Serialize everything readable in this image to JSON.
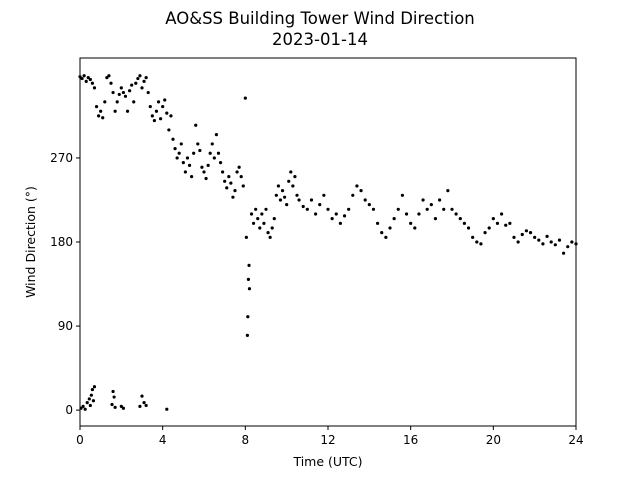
{
  "chart_data": {
    "type": "scatter",
    "title": "AO&SS Building Tower Wind Direction",
    "subtitle": "2023-01-14",
    "x_label": "Time (UTC)",
    "y_label": "Wind Direction (°)",
    "color": "#000000",
    "xlim": [
      0,
      24
    ],
    "xticks": [
      0,
      4,
      8,
      12,
      16,
      20,
      24
    ],
    "ylim": [
      -17,
      377
    ],
    "yticks": [
      0,
      90,
      180,
      270
    ],
    "x": [
      0.0,
      0.1,
      0.2,
      0.3,
      0.4,
      0.5,
      0.6,
      0.7,
      0.8,
      0.9,
      1.0,
      1.1,
      1.2,
      1.3,
      1.4,
      1.5,
      1.6,
      1.7,
      1.8,
      1.9,
      2.0,
      2.1,
      2.2,
      2.3,
      2.4,
      2.5,
      2.6,
      2.7,
      2.8,
      2.9,
      3.0,
      3.1,
      3.2,
      3.3,
      3.4,
      3.5,
      3.6,
      3.7,
      3.8,
      3.9,
      4.0,
      4.1,
      4.2,
      4.3,
      4.4,
      4.5,
      4.6,
      4.7,
      4.8,
      4.9,
      5.0,
      5.1,
      5.2,
      5.3,
      5.4,
      5.5,
      5.6,
      5.7,
      5.8,
      5.9,
      6.0,
      6.1,
      6.2,
      6.3,
      6.4,
      6.5,
      6.6,
      6.7,
      6.8,
      6.9,
      7.0,
      7.1,
      7.2,
      7.3,
      7.4,
      7.5,
      7.6,
      7.7,
      7.8,
      7.9,
      8.0,
      8.05,
      8.1,
      8.12,
      8.15,
      8.18,
      8.2,
      8.3,
      8.4,
      8.5,
      8.6,
      8.7,
      8.8,
      8.9,
      9.0,
      9.1,
      9.2,
      9.3,
      9.4,
      9.5,
      9.6,
      9.7,
      9.8,
      9.9,
      10.0,
      10.1,
      10.2,
      10.3,
      10.4,
      10.5,
      10.6,
      10.8,
      11.0,
      11.2,
      11.4,
      11.6,
      11.8,
      12.0,
      12.2,
      12.4,
      12.6,
      12.8,
      13.0,
      13.2,
      13.4,
      13.6,
      13.8,
      14.0,
      14.2,
      14.4,
      14.6,
      14.8,
      15.0,
      15.2,
      15.4,
      15.6,
      15.8,
      16.0,
      16.2,
      16.4,
      16.6,
      16.8,
      17.0,
      17.2,
      17.4,
      17.6,
      17.8,
      18.0,
      18.2,
      18.4,
      18.6,
      18.8,
      19.0,
      19.2,
      19.4,
      19.6,
      19.8,
      20.0,
      20.2,
      20.4,
      20.6,
      20.8,
      21.0,
      21.2,
      21.4,
      21.6,
      21.8,
      22.0,
      22.2,
      22.4,
      22.6,
      22.8,
      23.0,
      23.2,
      23.4,
      23.6,
      23.8,
      24.0,
      0.05,
      0.15,
      0.25,
      0.35,
      0.45,
      0.5,
      0.55,
      0.6,
      0.65,
      0.7,
      1.55,
      1.6,
      1.65,
      1.7,
      2.0,
      2.1,
      2.9,
      3.0,
      3.1,
      3.2,
      4.2
    ],
    "values": [
      357,
      355,
      358,
      352,
      356,
      354,
      350,
      345,
      325,
      315,
      320,
      313,
      330,
      356,
      358,
      350,
      340,
      320,
      330,
      338,
      345,
      340,
      336,
      320,
      342,
      348,
      330,
      350,
      355,
      358,
      345,
      352,
      356,
      340,
      325,
      315,
      310,
      320,
      330,
      312,
      325,
      332,
      318,
      300,
      315,
      290,
      280,
      270,
      275,
      285,
      265,
      255,
      270,
      262,
      250,
      275,
      305,
      285,
      278,
      260,
      255,
      248,
      262,
      275,
      285,
      270,
      295,
      275,
      265,
      255,
      245,
      238,
      250,
      243,
      228,
      235,
      255,
      260,
      250,
      240,
      334,
      185,
      80,
      100,
      140,
      155,
      130,
      210,
      200,
      215,
      205,
      195,
      210,
      200,
      215,
      190,
      185,
      195,
      205,
      230,
      240,
      225,
      235,
      228,
      220,
      245,
      255,
      240,
      250,
      230,
      225,
      218,
      215,
      225,
      210,
      220,
      230,
      215,
      205,
      210,
      200,
      208,
      215,
      230,
      240,
      235,
      225,
      220,
      215,
      200,
      190,
      185,
      195,
      205,
      215,
      230,
      210,
      200,
      195,
      210,
      225,
      215,
      220,
      205,
      225,
      215,
      235,
      215,
      210,
      205,
      200,
      195,
      185,
      180,
      178,
      190,
      195,
      205,
      200,
      210,
      198,
      200,
      185,
      180,
      188,
      192,
      190,
      185,
      182,
      178,
      186,
      180,
      177,
      182,
      168,
      175,
      180,
      178,
      2,
      4,
      1,
      8,
      12,
      5,
      16,
      22,
      10,
      25,
      6,
      20,
      14,
      3,
      4,
      2,
      4,
      15,
      8,
      5,
      1
    ]
  }
}
